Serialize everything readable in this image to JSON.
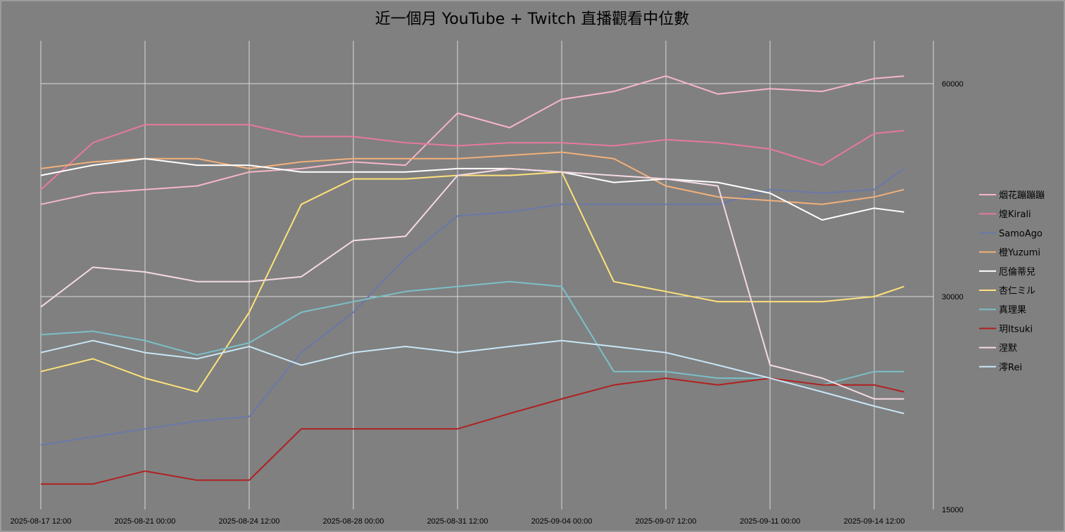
{
  "chart_data": {
    "type": "line",
    "title": "近一個月 YouTube + Twitch 直播觀看中位數",
    "xlabel": "",
    "ylabel": "",
    "x_tick_labels": [
      "2025-08-17 12:00",
      "2025-08-21 00:00",
      "2025-08-24 12:00",
      "2025-08-28 00:00",
      "2025-08-31 12:00",
      "2025-09-04 00:00",
      "2025-09-07 12:00",
      "2025-09-11 00:00",
      "2025-09-14 12:00"
    ],
    "x_start": "2025-08-17 12:00",
    "x_end": "2025-09-17 12:00",
    "y_scale": "log",
    "ylim": [
      15000,
      80000
    ],
    "y_ticks": [
      15000,
      30000,
      60000
    ],
    "y_tick_labels": [
      "15000",
      "30000",
      "60000"
    ],
    "y_axis_side": "right",
    "grid": true,
    "legend_position": "right",
    "x": [
      "2025-08-17 12:00",
      "2025-08-19 06:00",
      "2025-08-21 00:00",
      "2025-08-22 18:00",
      "2025-08-24 12:00",
      "2025-08-26 06:00",
      "2025-08-28 00:00",
      "2025-08-29 18:00",
      "2025-08-31 12:00",
      "2025-09-02 06:00",
      "2025-09-04 00:00",
      "2025-09-05 18:00",
      "2025-09-07 12:00",
      "2025-09-09 06:00",
      "2025-09-11 00:00",
      "2025-09-12 18:00",
      "2025-09-14 12:00",
      "2025-09-15 12:00"
    ],
    "series": [
      {
        "name": "烟花蹦蹦蹦",
        "color": "#f7b6c8",
        "values": [
          40500,
          42000,
          42500,
          43000,
          45000,
          45500,
          46500,
          46000,
          54500,
          52000,
          57000,
          58500,
          61500,
          58000,
          59000,
          58500,
          61000,
          61500
        ]
      },
      {
        "name": "煌Kirali",
        "color": "#e8799a",
        "values": [
          42500,
          49500,
          52500,
          52500,
          52500,
          50500,
          50500,
          49500,
          49000,
          49500,
          49500,
          49000,
          50000,
          49500,
          48500,
          46000,
          51000,
          51500
        ]
      },
      {
        "name": "SamoAgo",
        "color": "#6a78a8",
        "values": [
          18500,
          19000,
          19500,
          20000,
          20300,
          25000,
          28500,
          34000,
          39000,
          39500,
          40500,
          40500,
          40500,
          40500,
          42500,
          42000,
          42500,
          45500
        ]
      },
      {
        "name": "橙Yuzumi",
        "color": "#f2b07a",
        "values": [
          45500,
          46500,
          47000,
          47000,
          45500,
          46500,
          47000,
          47000,
          47000,
          47500,
          48000,
          47000,
          43000,
          41500,
          41000,
          40500,
          41500,
          42500
        ]
      },
      {
        "name": "厄倫蒂兒",
        "color": "#ffffff",
        "values": [
          44500,
          46000,
          47000,
          46000,
          46000,
          45000,
          45000,
          45000,
          45500,
          45500,
          45000,
          43500,
          44000,
          43500,
          42000,
          38500,
          40000,
          39500
        ]
      },
      {
        "name": "杏仁ミル",
        "color": "#ffe27a",
        "values": [
          23500,
          24500,
          23000,
          22000,
          28500,
          40500,
          44000,
          44000,
          44500,
          44500,
          45000,
          31500,
          30500,
          29500,
          29500,
          29500,
          30000,
          31000
        ]
      },
      {
        "name": "真理果",
        "color": "#7ac0c8",
        "values": [
          26500,
          26800,
          26000,
          24800,
          25800,
          28500,
          29500,
          30500,
          31000,
          31500,
          31000,
          23500,
          23500,
          23000,
          23000,
          22500,
          23500,
          23500
        ]
      },
      {
        "name": "玥Itsuki",
        "color": "#b02020",
        "values": [
          16300,
          16300,
          17000,
          16500,
          16500,
          19500,
          19500,
          19500,
          19500,
          20500,
          21500,
          22500,
          23000,
          22500,
          23000,
          22500,
          22500,
          22000
        ]
      },
      {
        "name": "涅默",
        "color": "#f5d9e4",
        "values": [
          29000,
          33000,
          32500,
          31500,
          31500,
          32000,
          36000,
          36500,
          44500,
          45500,
          45000,
          44500,
          44000,
          43000,
          24000,
          23000,
          21500,
          21500
        ]
      },
      {
        "name": "澪Rei",
        "color": "#c8e6f7",
        "values": [
          25000,
          26000,
          25000,
          24500,
          25500,
          24000,
          25000,
          25500,
          25000,
          25500,
          26000,
          25500,
          25000,
          24000,
          23000,
          22000,
          21000,
          20500
        ]
      }
    ]
  }
}
